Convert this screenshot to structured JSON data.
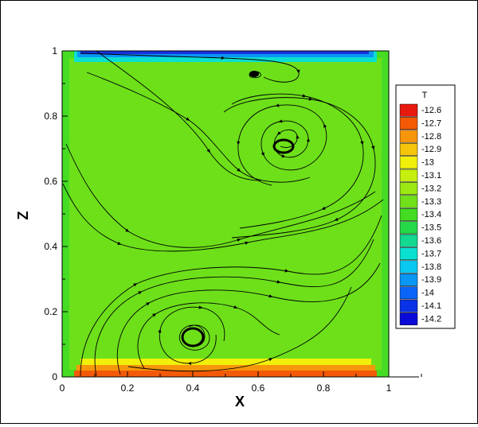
{
  "chart_data": {
    "type": "contour",
    "xlabel": "X",
    "ylabel": "Z",
    "xlim": [
      0,
      1
    ],
    "ylim": [
      0,
      1
    ],
    "xticks": [
      {
        "value": 0,
        "label": "0"
      },
      {
        "value": 0.2,
        "label": "0.2"
      },
      {
        "value": 0.4,
        "label": "0.4"
      },
      {
        "value": 0.6,
        "label": "0.6"
      },
      {
        "value": 0.8,
        "label": "0.8"
      },
      {
        "value": 1,
        "label": "1"
      }
    ],
    "yticks": [
      {
        "value": 0,
        "label": "0"
      },
      {
        "value": 0.2,
        "label": "0.2"
      },
      {
        "value": 0.4,
        "label": "0.4"
      },
      {
        "value": 0.6,
        "label": "0.6"
      },
      {
        "value": 0.8,
        "label": "0.8"
      },
      {
        "value": 1,
        "label": "1"
      }
    ],
    "legend": {
      "title": "T",
      "placement": "right",
      "levels": [
        {
          "label": "-12.6",
          "color": "#e8190e"
        },
        {
          "label": "-12.7",
          "color": "#f45a05"
        },
        {
          "label": "-12.8",
          "color": "#f7960a"
        },
        {
          "label": "-12.9",
          "color": "#f4c50a"
        },
        {
          "label": "-13",
          "color": "#f0f00a"
        },
        {
          "label": "-13.1",
          "color": "#c6ef0f"
        },
        {
          "label": "-13.2",
          "color": "#9be814"
        },
        {
          "label": "-13.3",
          "color": "#70e01a"
        },
        {
          "label": "-13.4",
          "color": "#44dc22"
        },
        {
          "label": "-13.5",
          "color": "#24d848"
        },
        {
          "label": "-13.6",
          "color": "#12d890"
        },
        {
          "label": "-13.7",
          "color": "#0ae0d0"
        },
        {
          "label": "-13.8",
          "color": "#0ac8f0"
        },
        {
          "label": "-13.9",
          "color": "#0a96f5"
        },
        {
          "label": "-14",
          "color": "#0a64f5"
        },
        {
          "label": "-14.1",
          "color": "#0a32e6"
        },
        {
          "label": "-14.2",
          "color": "#0a0ad8"
        }
      ]
    },
    "field": {
      "interior_color": "#6de01a",
      "bottom_hot_color": "#f25a08",
      "top_cold_color": "#1632e0"
    },
    "vortices": [
      {
        "name": "upper",
        "x": 0.68,
        "z": 0.71
      },
      {
        "name": "lower",
        "x": 0.39,
        "z": 0.12
      },
      {
        "name": "top-small",
        "x": 0.59,
        "z": 0.93
      }
    ]
  }
}
